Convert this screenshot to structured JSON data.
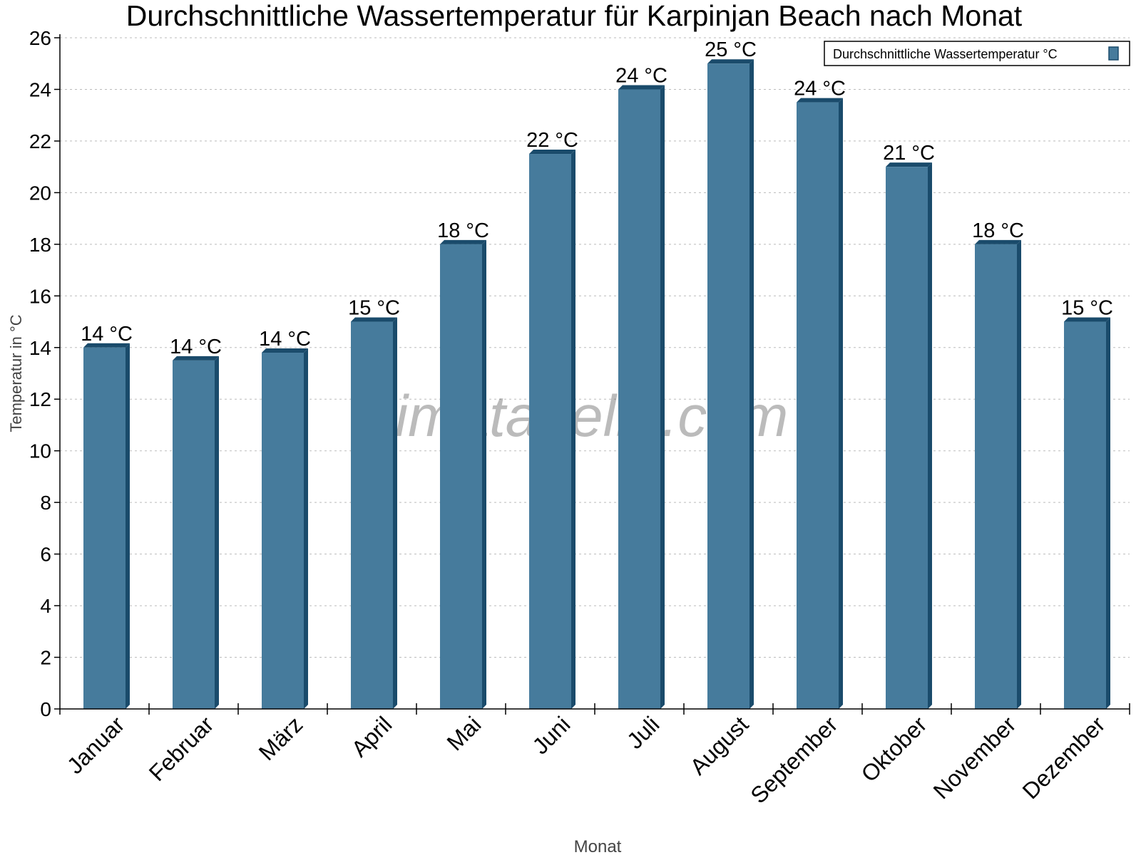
{
  "chart_data": {
    "type": "bar",
    "title": "Durchschnittliche Wassertemperatur für Karpinjan Beach nach Monat",
    "xlabel": "Monat",
    "ylabel": "Temperatur in °C",
    "categories": [
      "Januar",
      "Februar",
      "März",
      "April",
      "Mai",
      "Juni",
      "Juli",
      "August",
      "September",
      "Oktober",
      "November",
      "Dezember"
    ],
    "series": [
      {
        "name": "Durchschnittliche Wassertemperatur °C",
        "values": [
          14,
          13.5,
          13.8,
          15,
          18,
          21.5,
          24,
          25,
          23.5,
          21,
          18,
          15
        ],
        "labels": [
          "14 °C",
          "14 °C",
          "14 °C",
          "15 °C",
          "18 °C",
          "22 °C",
          "24 °C",
          "25 °C",
          "24 °C",
          "21 °C",
          "18 °C",
          "15 °C"
        ]
      }
    ],
    "ylim": [
      0,
      26
    ],
    "yticks": [
      0,
      2,
      4,
      6,
      8,
      10,
      12,
      14,
      16,
      18,
      20,
      22,
      24,
      26
    ],
    "grid": true,
    "legend_position": "top-right",
    "colors": {
      "bar": "#467b9c",
      "bar_dark": "#1a4b6b"
    },
    "watermark": "klimatabelle.com"
  }
}
